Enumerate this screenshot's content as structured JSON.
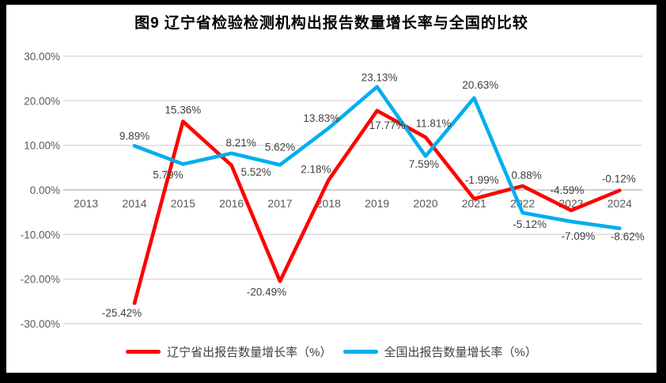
{
  "chart_data": {
    "type": "line",
    "title": "图9  辽宁省检验检测机构出报告数量增长率与全国的比较",
    "categories": [
      "2013",
      "2014",
      "2015",
      "2016",
      "2017",
      "2018",
      "2019",
      "2020",
      "2021",
      "2022",
      "2023",
      "2024"
    ],
    "xlabel": "",
    "ylabel": "",
    "ylim": [
      -30,
      30
    ],
    "grid": true,
    "legend_position": "bottom",
    "y_axis_ticks": [
      {
        "label": "30.00%",
        "value": 30
      },
      {
        "label": "20.00%",
        "value": 20
      },
      {
        "label": "10.00%",
        "value": 10
      },
      {
        "label": "0.00%",
        "value": 0
      },
      {
        "label": "-10.00%",
        "value": -10
      },
      {
        "label": "-20.00%",
        "value": -20
      },
      {
        "label": "-30.00%",
        "value": -30
      }
    ],
    "series": [
      {
        "name": "辽宁省出报告数量增长率（%）",
        "color": "#FF0000",
        "values": [
          null,
          -25.42,
          15.36,
          5.52,
          -20.49,
          2.18,
          17.77,
          11.81,
          -1.99,
          0.88,
          -4.59,
          -0.12
        ],
        "label_offsets": [
          null,
          {
            "dx": -16,
            "dy": 17
          },
          {
            "dx": 0,
            "dy": -10
          },
          {
            "dx": 31,
            "dy": 13
          },
          {
            "dx": -17,
            "dy": 18
          },
          {
            "dx": -16,
            "dy": -9
          },
          {
            "dx": 13,
            "dy": 23
          },
          {
            "dx": 10,
            "dy": -13
          },
          {
            "dx": 10,
            "dy": -19,
            "leader": true
          },
          {
            "dx": 5,
            "dy": -9
          },
          {
            "dx": -5,
            "dy": -21
          },
          {
            "dx": -1,
            "dy": -10
          }
        ]
      },
      {
        "name": "全国出报告数量增长率（%）",
        "color": "#00AEEF",
        "values": [
          null,
          9.89,
          5.79,
          8.21,
          5.62,
          13.83,
          23.13,
          7.59,
          20.63,
          -5.12,
          -7.09,
          -8.62
        ],
        "label_offsets": [
          null,
          {
            "dx": 0,
            "dy": -8
          },
          {
            "dx": -19,
            "dy": 18
          },
          {
            "dx": 12,
            "dy": -9
          },
          {
            "dx": 0,
            "dy": -18
          },
          {
            "dx": -9,
            "dy": -8
          },
          {
            "dx": 3,
            "dy": -7
          },
          {
            "dx": -2,
            "dy": 15
          },
          {
            "dx": 8,
            "dy": -12
          },
          {
            "dx": 9,
            "dy": 19
          },
          {
            "dx": 9,
            "dy": 23
          },
          {
            "dx": 10,
            "dy": 15
          }
        ]
      }
    ]
  },
  "colors": {
    "frame": "#000000",
    "background": "#ffffff",
    "gridline": "#D9D9D9",
    "zero_line": "#BFBFBF",
    "axis_text": "#595959",
    "data_label": "#404040",
    "leader_line": "#A6A6A6"
  }
}
